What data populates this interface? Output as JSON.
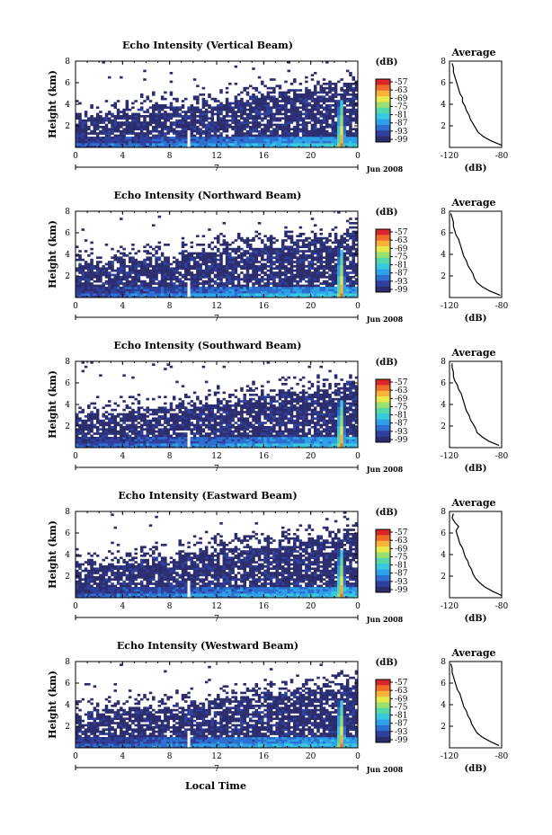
{
  "figure": {
    "xlabel": "Local Time",
    "date_label": "Jun 2008",
    "day_label": "7",
    "colorbar_unit": "(dB)",
    "avg_title": "Average",
    "avg_xlabel": "(dB)",
    "ylabel": "Height (km)"
  },
  "chart_data": [
    {
      "type": "heatmap",
      "title": "Echo Intensity (Vertical Beam)",
      "xlabel": "",
      "ylabel": "Height (km)",
      "x_ticks": [
        "0",
        "4",
        "8",
        "12",
        "16",
        "20",
        "0"
      ],
      "y_ticks": [
        "2",
        "4",
        "6",
        "8"
      ],
      "xlim": [
        0,
        24
      ],
      "ylim": [
        0,
        8
      ],
      "colorbar": {
        "unit": "(dB)",
        "ticks": [
          "-57",
          "-63",
          "-69",
          "-75",
          "-81",
          "-87",
          "-93",
          "-99"
        ]
      },
      "average_profile": {
        "title": "Average",
        "xlabel": "(dB)",
        "x_ticks": [
          "-120",
          "-80"
        ],
        "y_ticks": [
          "2",
          "4",
          "6",
          "8"
        ],
        "xlim": [
          -120,
          -80
        ],
        "ylim": [
          0,
          8
        ],
        "heights_km": [
          0.2,
          0.6,
          1.0,
          1.4,
          1.8,
          2.2,
          2.6,
          3.0,
          3.4,
          3.8,
          4.2,
          4.6,
          5.0,
          5.4,
          5.8,
          6.2,
          6.6,
          7.0,
          7.4,
          7.8
        ],
        "values_db": [
          -80,
          -88,
          -94,
          -98,
          -100,
          -102,
          -104,
          -105,
          -107,
          -108,
          -110,
          -110,
          -112,
          -113,
          -114,
          -115,
          -116,
          -117,
          -117,
          -118
        ]
      }
    },
    {
      "type": "heatmap",
      "title": "Echo Intensity (Northward Beam)",
      "xlabel": "",
      "ylabel": "Height (km)",
      "x_ticks": [
        "0",
        "4",
        "8",
        "12",
        "16",
        "20",
        "0"
      ],
      "y_ticks": [
        "2",
        "4",
        "6",
        "8"
      ],
      "xlim": [
        0,
        24
      ],
      "ylim": [
        0,
        8
      ],
      "colorbar": {
        "unit": "(dB)",
        "ticks": [
          "-57",
          "-63",
          "-69",
          "-75",
          "-81",
          "-87",
          "-93",
          "-99"
        ]
      },
      "average_profile": {
        "title": "Average",
        "xlabel": "(dB)",
        "x_ticks": [
          "-120",
          "-80"
        ],
        "y_ticks": [
          "2",
          "4",
          "6",
          "8"
        ],
        "xlim": [
          -120,
          -80
        ],
        "ylim": [
          0,
          8
        ],
        "heights_km": [
          0.2,
          0.6,
          1.0,
          1.4,
          1.8,
          2.2,
          2.6,
          3.0,
          3.4,
          3.8,
          4.2,
          4.6,
          5.0,
          5.4,
          5.8,
          6.2,
          6.6,
          7.0,
          7.4,
          7.8
        ],
        "values_db": [
          -81,
          -89,
          -95,
          -99,
          -101,
          -102,
          -104,
          -106,
          -107,
          -109,
          -110,
          -111,
          -112,
          -113,
          -115,
          -116,
          -117,
          -117,
          -118,
          -119
        ]
      }
    },
    {
      "type": "heatmap",
      "title": "Echo Intensity (Southward Beam)",
      "xlabel": "",
      "ylabel": "Height (km)",
      "x_ticks": [
        "0",
        "4",
        "8",
        "12",
        "16",
        "20",
        "0"
      ],
      "y_ticks": [
        "2",
        "4",
        "6",
        "8"
      ],
      "xlim": [
        0,
        24
      ],
      "ylim": [
        0,
        8
      ],
      "colorbar": {
        "unit": "(dB)",
        "ticks": [
          "-57",
          "-63",
          "-69",
          "-75",
          "-81",
          "-87",
          "-93",
          "-99"
        ]
      },
      "average_profile": {
        "title": "Average",
        "xlabel": "(dB)",
        "x_ticks": [
          "-120",
          "-80"
        ],
        "y_ticks": [
          "2",
          "4",
          "6",
          "8"
        ],
        "xlim": [
          -120,
          -80
        ],
        "ylim": [
          0,
          8
        ],
        "heights_km": [
          0.2,
          0.6,
          1.0,
          1.4,
          1.8,
          2.2,
          2.6,
          3.0,
          3.4,
          3.8,
          4.2,
          4.6,
          5.0,
          5.4,
          5.8,
          6.2,
          6.6,
          7.0,
          7.4,
          7.8
        ],
        "values_db": [
          -82,
          -90,
          -95,
          -99,
          -100,
          -102,
          -104,
          -105,
          -107,
          -108,
          -109,
          -110,
          -111,
          -113,
          -114,
          -116,
          -117,
          -117,
          -118,
          -118
        ]
      }
    },
    {
      "type": "heatmap",
      "title": "Echo Intensity (Eastward Beam)",
      "xlabel": "",
      "ylabel": "Height (km)",
      "x_ticks": [
        "0",
        "4",
        "8",
        "12",
        "16",
        "20",
        "0"
      ],
      "y_ticks": [
        "2",
        "4",
        "6",
        "8"
      ],
      "xlim": [
        0,
        24
      ],
      "ylim": [
        0,
        8
      ],
      "colorbar": {
        "unit": "(dB)",
        "ticks": [
          "-57",
          "-63",
          "-69",
          "-75",
          "-81",
          "-87",
          "-93",
          "-99"
        ]
      },
      "average_profile": {
        "title": "Average",
        "xlabel": "(dB)",
        "x_ticks": [
          "-120",
          "-80"
        ],
        "y_ticks": [
          "2",
          "4",
          "6",
          "8"
        ],
        "xlim": [
          -120,
          -80
        ],
        "ylim": [
          0,
          8
        ],
        "heights_km": [
          0.2,
          0.6,
          1.0,
          1.4,
          1.8,
          2.2,
          2.6,
          3.0,
          3.4,
          3.8,
          4.2,
          4.6,
          5.0,
          5.4,
          5.8,
          6.2,
          6.6,
          7.0,
          7.4,
          7.8
        ],
        "values_db": [
          -80,
          -87,
          -93,
          -97,
          -100,
          -102,
          -103,
          -105,
          -106,
          -108,
          -109,
          -110,
          -112,
          -113,
          -114,
          -115,
          -113,
          -116,
          -118,
          -117
        ]
      }
    },
    {
      "type": "heatmap",
      "title": "Echo Intensity (Westward Beam)",
      "xlabel": "Local Time",
      "ylabel": "Height (km)",
      "x_ticks": [
        "0",
        "4",
        "8",
        "12",
        "16",
        "20",
        "0"
      ],
      "y_ticks": [
        "2",
        "4",
        "6",
        "8"
      ],
      "xlim": [
        0,
        24
      ],
      "ylim": [
        0,
        8
      ],
      "colorbar": {
        "unit": "(dB)",
        "ticks": [
          "-57",
          "-63",
          "-69",
          "-75",
          "-81",
          "-87",
          "-93",
          "-99"
        ]
      },
      "average_profile": {
        "title": "Average",
        "xlabel": "(dB)",
        "x_ticks": [
          "-120",
          "-80"
        ],
        "y_ticks": [
          "2",
          "4",
          "6",
          "8"
        ],
        "xlim": [
          -120,
          -80
        ],
        "ylim": [
          0,
          8
        ],
        "heights_km": [
          0.2,
          0.6,
          1.0,
          1.4,
          1.8,
          2.2,
          2.6,
          3.0,
          3.4,
          3.8,
          4.2,
          4.6,
          5.0,
          5.4,
          5.8,
          6.2,
          6.6,
          7.0,
          7.4,
          7.8
        ],
        "values_db": [
          -82,
          -89,
          -95,
          -99,
          -101,
          -103,
          -104,
          -106,
          -107,
          -109,
          -110,
          -111,
          -112,
          -114,
          -115,
          -116,
          -117,
          -118,
          -118,
          -119
        ]
      }
    }
  ],
  "colors": {
    "colormap": [
      "#2b2d6e",
      "#2f3f9c",
      "#2d6fd0",
      "#2ea0e8",
      "#38c8e0",
      "#55d8a8",
      "#9ae070",
      "#e8e84a",
      "#f7b23a",
      "#f06a28",
      "#d8262a"
    ],
    "background": "#ffffff",
    "axes": "#000000"
  }
}
